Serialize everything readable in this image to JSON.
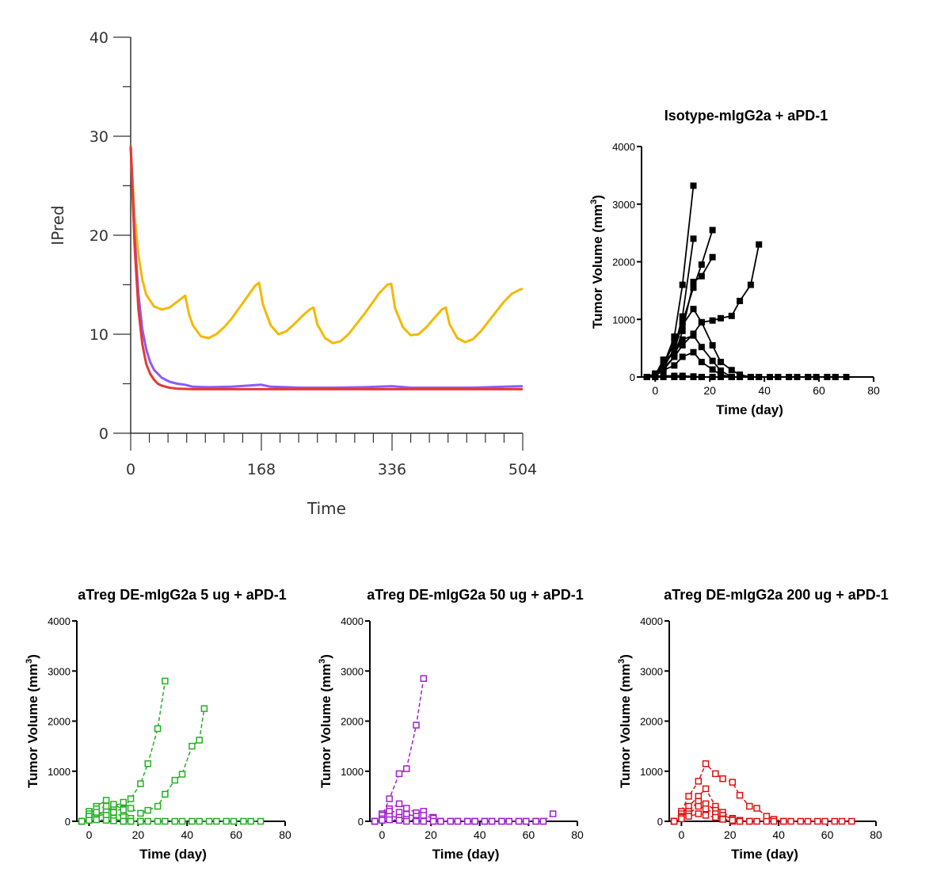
{
  "chart_data": [
    {
      "id": "ipred",
      "type": "line",
      "title": "",
      "xlabel": "Time",
      "ylabel": "IPred",
      "xlim": [
        0,
        504
      ],
      "ylim": [
        0,
        40
      ],
      "xticks": [
        0,
        168,
        336,
        504
      ],
      "yticks": [
        0,
        10,
        20,
        30,
        40
      ],
      "series": [
        {
          "color": "#F5B800",
          "x": [
            0,
            5,
            10,
            15,
            20,
            30,
            40,
            50,
            60,
            70,
            75,
            80,
            90,
            100,
            110,
            120,
            130,
            140,
            150,
            160,
            165,
            170,
            180,
            190,
            200,
            210,
            220,
            230,
            235,
            240,
            250,
            260,
            270,
            280,
            290,
            300,
            310,
            320,
            330,
            335,
            340,
            350,
            360,
            370,
            380,
            390,
            400,
            405,
            410,
            420,
            430,
            440,
            450,
            460,
            470,
            480,
            490,
            500,
            504
          ],
          "y": [
            29,
            22,
            18,
            15.5,
            14,
            12.8,
            12.5,
            12.7,
            13.3,
            13.9,
            12.0,
            10.9,
            9.8,
            9.6,
            10.0,
            10.7,
            11.6,
            12.7,
            13.8,
            14.9,
            15.2,
            13.0,
            10.9,
            10.0,
            10.3,
            11.0,
            11.8,
            12.5,
            12.7,
            11.0,
            9.6,
            9.1,
            9.3,
            10.0,
            11.0,
            12.0,
            13.1,
            14.2,
            15.0,
            15.1,
            12.6,
            10.7,
            9.9,
            10.0,
            10.7,
            11.6,
            12.5,
            12.7,
            11.0,
            9.6,
            9.2,
            9.5,
            10.3,
            11.3,
            12.3,
            13.3,
            14.1,
            14.5,
            14.6
          ]
        },
        {
          "color": "#8B5CF6",
          "x": [
            0,
            5,
            10,
            15,
            20,
            25,
            30,
            40,
            50,
            60,
            70,
            80,
            100,
            130,
            168,
            180,
            220,
            260,
            300,
            336,
            360,
            400,
            440,
            480,
            504
          ],
          "y": [
            29,
            20,
            14,
            10.5,
            8.5,
            7.2,
            6.4,
            5.6,
            5.2,
            5.0,
            4.9,
            4.7,
            4.65,
            4.7,
            4.9,
            4.7,
            4.6,
            4.6,
            4.65,
            4.75,
            4.6,
            4.6,
            4.6,
            4.7,
            4.75
          ]
        },
        {
          "color": "#E53935",
          "x": [
            0,
            5,
            10,
            15,
            20,
            25,
            30,
            35,
            40,
            50,
            60,
            80,
            100,
            168,
            250,
            336,
            420,
            504
          ],
          "y": [
            29,
            19,
            12.5,
            9.0,
            7.0,
            6.0,
            5.4,
            5.0,
            4.8,
            4.6,
            4.5,
            4.45,
            4.45,
            4.45,
            4.45,
            4.45,
            4.45,
            4.45
          ]
        }
      ]
    },
    {
      "id": "isotype",
      "type": "line",
      "title": "Isotype-mIgG2a + aPD-1",
      "xlabel": "Time (day)",
      "ylabel": "Tumor Volume (mm",
      "ylabel_sup": "3",
      "ylabel_close": ")",
      "xlim": [
        -5,
        80
      ],
      "ylim": [
        0,
        4000
      ],
      "xticks": [
        0,
        20,
        40,
        60,
        80
      ],
      "yticks": [
        0,
        1000,
        2000,
        3000,
        4000
      ],
      "color": "#000000",
      "dashed": false,
      "marker": "filled-square",
      "series": [
        {
          "x": [
            -3,
            0,
            3,
            7,
            10,
            14
          ],
          "y": [
            0,
            60,
            200,
            700,
            1600,
            3320
          ]
        },
        {
          "x": [
            -3,
            0,
            3,
            7,
            10,
            14
          ],
          "y": [
            0,
            40,
            150,
            500,
            1050,
            2400
          ]
        },
        {
          "x": [
            -3,
            0,
            3,
            7,
            10,
            14,
            17,
            21
          ],
          "y": [
            0,
            50,
            200,
            450,
            950,
            1550,
            1950,
            2550
          ]
        },
        {
          "x": [
            -3,
            0,
            3,
            7,
            10,
            14,
            17,
            21
          ],
          "y": [
            0,
            30,
            120,
            350,
            800,
            1650,
            1750,
            2080
          ]
        },
        {
          "x": [
            -3,
            0,
            3,
            7,
            10,
            14,
            17,
            21,
            24,
            28,
            31,
            35,
            38
          ],
          "y": [
            0,
            40,
            150,
            350,
            550,
            750,
            950,
            980,
            1020,
            1060,
            1320,
            1600,
            2300
          ]
        },
        {
          "x": [
            -3,
            0,
            3,
            7,
            10,
            14,
            17,
            21,
            24,
            28,
            31,
            35
          ],
          "y": [
            0,
            30,
            200,
            600,
            900,
            1180,
            950,
            550,
            260,
            120,
            40,
            0
          ]
        },
        {
          "x": [
            -3,
            0,
            3,
            7,
            10,
            14,
            17,
            21,
            24,
            28
          ],
          "y": [
            0,
            30,
            300,
            400,
            650,
            720,
            520,
            280,
            110,
            0
          ]
        },
        {
          "x": [
            -3,
            0,
            3,
            7,
            10,
            14,
            17,
            21,
            24,
            28
          ],
          "y": [
            0,
            20,
            120,
            200,
            350,
            430,
            260,
            130,
            40,
            0
          ]
        },
        {
          "x": [
            -3,
            0,
            3,
            7,
            10,
            14,
            17,
            21,
            24,
            28,
            31,
            35,
            38,
            42,
            45,
            49,
            52,
            56,
            59,
            63,
            66,
            70
          ],
          "y": [
            0,
            10,
            20,
            20,
            20,
            10,
            0,
            0,
            0,
            0,
            0,
            0,
            0,
            0,
            0,
            0,
            0,
            0,
            0,
            0,
            0,
            0
          ]
        },
        {
          "x": [
            -3,
            0,
            3,
            7,
            10,
            14,
            17,
            21,
            24,
            28,
            31,
            35,
            38,
            42,
            45,
            49,
            52,
            56,
            59,
            63,
            66
          ],
          "y": [
            0,
            0,
            0,
            0,
            0,
            0,
            0,
            0,
            0,
            0,
            0,
            0,
            0,
            0,
            0,
            0,
            0,
            0,
            0,
            0,
            0
          ]
        }
      ]
    },
    {
      "id": "treg5",
      "type": "line",
      "title": "aTreg DE-mIgG2a 5 ug + aPD-1",
      "xlabel": "Time (day)",
      "ylabel": "Tumor Volume (mm",
      "ylabel_sup": "3",
      "ylabel_close": ")",
      "xlim": [
        -5,
        80
      ],
      "ylim": [
        0,
        4000
      ],
      "xticks": [
        0,
        20,
        40,
        60,
        80
      ],
      "yticks": [
        0,
        1000,
        2000,
        3000,
        4000
      ],
      "color": "#22B022",
      "dashed": true,
      "marker": "open-square",
      "series": [
        {
          "x": [
            -3,
            0,
            3,
            7,
            10,
            14,
            17,
            21,
            24,
            28,
            31
          ],
          "y": [
            0,
            50,
            100,
            150,
            200,
            250,
            450,
            750,
            1150,
            1850,
            2800
          ]
        },
        {
          "x": [
            -3,
            0,
            3,
            7,
            10,
            14,
            17,
            21,
            24,
            28,
            31,
            35,
            38,
            42,
            45,
            47
          ],
          "y": [
            0,
            80,
            150,
            200,
            300,
            380,
            260,
            160,
            220,
            300,
            540,
            820,
            940,
            1500,
            1620,
            2250
          ]
        },
        {
          "x": [
            -3,
            0,
            3,
            7,
            10,
            14,
            17,
            21
          ],
          "y": [
            0,
            200,
            300,
            420,
            340,
            230,
            60,
            0
          ]
        },
        {
          "x": [
            -3,
            0,
            3,
            7,
            10,
            14,
            17
          ],
          "y": [
            0,
            150,
            250,
            300,
            180,
            90,
            0
          ]
        },
        {
          "x": [
            -3,
            0,
            3,
            7,
            10,
            14
          ],
          "y": [
            0,
            100,
            180,
            120,
            60,
            0
          ]
        },
        {
          "x": [
            -3,
            0,
            3,
            7,
            10,
            14,
            17,
            21,
            24,
            28,
            31,
            35,
            38,
            42,
            45,
            49,
            52,
            56,
            59,
            63,
            66,
            70
          ],
          "y": [
            0,
            20,
            30,
            20,
            10,
            0,
            0,
            0,
            0,
            0,
            0,
            0,
            0,
            0,
            0,
            0,
            0,
            0,
            0,
            0,
            0,
            0
          ]
        }
      ]
    },
    {
      "id": "treg50",
      "type": "line",
      "title": "aTreg DE-mIgG2a 50 ug + aPD-1",
      "xlabel": "Time (day)",
      "ylabel": "Tumor Volume (mm",
      "ylabel_sup": "3",
      "ylabel_close": ")",
      "xlim": [
        -5,
        80
      ],
      "ylim": [
        0,
        4000
      ],
      "xticks": [
        0,
        20,
        40,
        60,
        80
      ],
      "yticks": [
        0,
        1000,
        2000,
        3000,
        4000
      ],
      "color": "#A020D0",
      "dashed": true,
      "marker": "open-square",
      "series": [
        {
          "x": [
            -3,
            0,
            3,
            7,
            10,
            14,
            17
          ],
          "y": [
            0,
            100,
            450,
            950,
            1050,
            1920,
            2850
          ]
        },
        {
          "x": [
            -3,
            0,
            3,
            7,
            10,
            14,
            17,
            21
          ],
          "y": [
            0,
            150,
            250,
            350,
            260,
            170,
            200,
            80
          ]
        },
        {
          "x": [
            -3,
            0,
            3,
            7,
            10,
            14,
            17,
            21,
            24
          ],
          "y": [
            0,
            120,
            200,
            180,
            140,
            100,
            120,
            60,
            0
          ]
        },
        {
          "x": [
            -3,
            0,
            3,
            7,
            10,
            14,
            17,
            21,
            24,
            28,
            31,
            35,
            38,
            42,
            45,
            49,
            52,
            56,
            59,
            63,
            66,
            70
          ],
          "y": [
            0,
            50,
            100,
            80,
            40,
            20,
            0,
            0,
            0,
            0,
            0,
            0,
            0,
            0,
            0,
            0,
            0,
            0,
            0,
            0,
            0,
            150
          ]
        },
        {
          "x": [
            -3,
            0,
            3,
            7,
            10,
            14,
            17,
            21,
            24,
            28,
            31,
            35,
            38,
            42,
            45,
            49,
            52,
            56,
            59,
            63,
            66
          ],
          "y": [
            0,
            20,
            30,
            20,
            0,
            0,
            0,
            0,
            0,
            0,
            0,
            0,
            0,
            0,
            0,
            0,
            0,
            0,
            0,
            0,
            0
          ]
        }
      ]
    },
    {
      "id": "treg200",
      "type": "line",
      "title": "aTreg DE-mIgG2a 200 ug + aPD-1",
      "xlabel": "Time (day)",
      "ylabel": "Tumor Volume (mm",
      "ylabel_sup": "3",
      "ylabel_close": ")",
      "xlim": [
        -5,
        80
      ],
      "ylim": [
        0,
        4000
      ],
      "xticks": [
        0,
        20,
        40,
        60,
        80
      ],
      "yticks": [
        0,
        1000,
        2000,
        3000,
        4000
      ],
      "color": "#E01010",
      "dashed": true,
      "marker": "open-square",
      "series": [
        {
          "x": [
            -3,
            0,
            3,
            7,
            10,
            14,
            17,
            21,
            24,
            28,
            31,
            35,
            38,
            42
          ],
          "y": [
            0,
            200,
            500,
            800,
            1150,
            950,
            850,
            780,
            520,
            300,
            260,
            100,
            40,
            0
          ]
        },
        {
          "x": [
            -3,
            0,
            3,
            7,
            10,
            14,
            17,
            21,
            24,
            28
          ],
          "y": [
            0,
            150,
            300,
            500,
            650,
            300,
            180,
            60,
            20,
            0
          ]
        },
        {
          "x": [
            -3,
            0,
            3,
            7,
            10,
            14,
            17,
            21,
            24
          ],
          "y": [
            0,
            100,
            200,
            400,
            350,
            220,
            120,
            50,
            0
          ]
        },
        {
          "x": [
            -3,
            0,
            3,
            7,
            10,
            14,
            17,
            21
          ],
          "y": [
            0,
            80,
            150,
            300,
            250,
            150,
            50,
            0
          ]
        },
        {
          "x": [
            -3,
            0,
            3,
            7,
            10,
            14,
            17,
            21,
            24,
            28,
            31,
            35,
            38,
            42,
            45,
            49,
            52,
            56,
            59,
            63,
            66,
            70
          ],
          "y": [
            0,
            50,
            100,
            150,
            120,
            80,
            40,
            20,
            0,
            0,
            0,
            0,
            0,
            0,
            0,
            0,
            0,
            0,
            0,
            0,
            0,
            0
          ]
        }
      ]
    }
  ]
}
